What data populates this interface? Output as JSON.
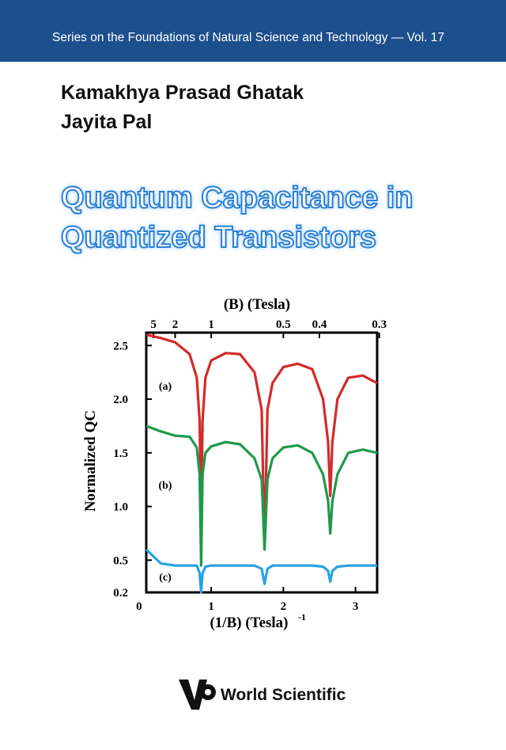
{
  "series_title": "Series on the Foundations of Natural Science and Technology — Vol. 17",
  "authors": [
    "Kamakhya Prasad Ghatak",
    "Jayita Pal"
  ],
  "title_lines": [
    "Quantum Capacitance in",
    "Quantized Transistors"
  ],
  "publisher": "World Scientific",
  "chart_data": {
    "type": "line",
    "xlabel": "(1/B) (Tesla)",
    "xlabel_superscript": "-1",
    "ylabel": "Normalized QC",
    "x2label": "(B) (Tesla)",
    "xlim": [
      0.1,
      3.3
    ],
    "ylim": [
      0.2,
      2.62
    ],
    "xticks": [
      0,
      1,
      2,
      3
    ],
    "x2ticks": [
      {
        "value": 0.2,
        "label": "5"
      },
      {
        "value": 0.5,
        "label": "2"
      },
      {
        "value": 1,
        "label": "1"
      },
      {
        "value": 2,
        "label": "0.5"
      },
      {
        "value": 2.5,
        "label": "0.4"
      },
      {
        "value": 3.33,
        "label": "0.3"
      }
    ],
    "yticks": [
      {
        "value": 2.5,
        "label": "2.5"
      },
      {
        "value": 2.0,
        "label": "2.0"
      },
      {
        "value": 1.5,
        "label": "1.5"
      },
      {
        "value": 1.0,
        "label": "1.0"
      },
      {
        "value": 0.5,
        "label": "0.5"
      },
      {
        "value": 0.2,
        "label": "0.2"
      }
    ],
    "x": [
      0.1,
      0.3,
      0.5,
      0.7,
      0.8,
      0.84,
      0.86,
      0.88,
      0.92,
      1.0,
      1.2,
      1.4,
      1.6,
      1.7,
      1.74,
      1.78,
      1.85,
      2.0,
      2.2,
      2.4,
      2.55,
      2.62,
      2.65,
      2.68,
      2.75,
      2.9,
      3.1,
      3.3
    ],
    "series": [
      {
        "name": "(a)",
        "color": "#d42a2a",
        "values": [
          2.6,
          2.57,
          2.53,
          2.42,
          2.2,
          1.8,
          0.8,
          1.8,
          2.2,
          2.36,
          2.43,
          2.42,
          2.25,
          1.9,
          0.6,
          1.9,
          2.15,
          2.3,
          2.33,
          2.28,
          2.0,
          1.6,
          1.1,
          1.6,
          2.0,
          2.2,
          2.22,
          2.15
        ]
      },
      {
        "name": "(b)",
        "color": "#1e9a4a",
        "values": [
          1.75,
          1.7,
          1.66,
          1.65,
          1.55,
          1.3,
          0.45,
          1.3,
          1.5,
          1.56,
          1.6,
          1.58,
          1.45,
          1.25,
          0.6,
          1.25,
          1.45,
          1.55,
          1.57,
          1.5,
          1.3,
          1.05,
          0.75,
          1.05,
          1.3,
          1.5,
          1.53,
          1.5
        ]
      },
      {
        "name": "(c)",
        "color": "#2aa3e0",
        "values": [
          0.6,
          0.47,
          0.45,
          0.45,
          0.45,
          0.38,
          0.2,
          0.38,
          0.44,
          0.45,
          0.45,
          0.45,
          0.45,
          0.42,
          0.28,
          0.42,
          0.45,
          0.45,
          0.45,
          0.45,
          0.44,
          0.4,
          0.3,
          0.4,
          0.44,
          0.45,
          0.45,
          0.45
        ]
      }
    ]
  }
}
